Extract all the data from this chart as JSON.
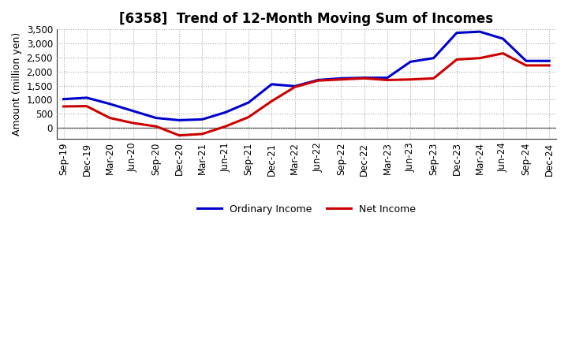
{
  "title": "[6358]  Trend of 12-Month Moving Sum of Incomes",
  "ylabel": "Amount (million yen)",
  "x_labels": [
    "Sep-19",
    "Dec-19",
    "Mar-20",
    "Jun-20",
    "Sep-20",
    "Dec-20",
    "Mar-21",
    "Jun-21",
    "Sep-21",
    "Dec-21",
    "Mar-22",
    "Jun-22",
    "Sep-22",
    "Dec-22",
    "Mar-23",
    "Jun-23",
    "Sep-23",
    "Dec-23",
    "Mar-24",
    "Jun-24",
    "Sep-24",
    "Dec-24"
  ],
  "ordinary_income": [
    1020,
    1070,
    850,
    600,
    350,
    270,
    300,
    550,
    900,
    1550,
    1480,
    1700,
    1760,
    1780,
    1780,
    2350,
    2480,
    3380,
    3420,
    3170,
    2380,
    2380
  ],
  "net_income": [
    760,
    770,
    350,
    170,
    50,
    -270,
    -220,
    50,
    380,
    950,
    1450,
    1680,
    1720,
    1760,
    1700,
    1720,
    1760,
    2430,
    2480,
    2650,
    2220,
    2220
  ],
  "ordinary_color": "#0000cc",
  "net_color": "#cc0000",
  "ylim": [
    -380,
    3500
  ],
  "yticks": [
    0,
    500,
    1000,
    1500,
    2000,
    2500,
    3000,
    3500
  ],
  "ytick_labels": [
    "0",
    "500",
    "1,000",
    "1,500",
    "2,000",
    "2,500",
    "3,000",
    "3,500"
  ],
  "background_color": "#ffffff",
  "grid_color": "#aaaaaa",
  "line_width": 2.2,
  "legend_ordinary": "Ordinary Income",
  "legend_net": "Net Income",
  "title_fontsize": 12,
  "label_fontsize": 8.5,
  "ylabel_fontsize": 9
}
